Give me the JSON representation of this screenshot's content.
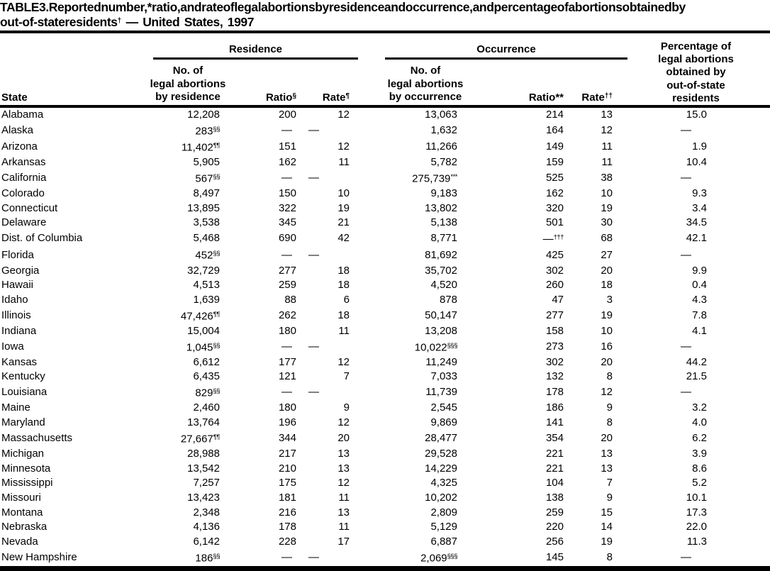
{
  "title": {
    "line1": "TABLE 3. Reported number,* ratio, and rate of legal abortions by residence and occurrence, and percentage of abortions obtained by",
    "line2a": "out-of-state residents",
    "line2_sup": "†",
    "line2b": " — United States, 1997"
  },
  "header": {
    "state_label": "State",
    "residence": {
      "group_label": "Residence",
      "no_lines": [
        "No. of",
        "legal abortions",
        "by residence"
      ],
      "ratio_label": "Ratio",
      "ratio_sup": "§",
      "rate_label": "Rate",
      "rate_sup": "¶"
    },
    "occurrence": {
      "group_label": "Occurrence",
      "no_lines": [
        "No. of",
        "legal abortions",
        "by occurrence"
      ],
      "ratio_label": "Ratio**",
      "rate_label": "Rate",
      "rate_sup": "††"
    },
    "percentage_lines": [
      "Percentage of",
      "legal abortions",
      "obtained by",
      "out-of-state",
      "residents"
    ]
  },
  "table": {
    "column_keys": [
      "state",
      "res_no",
      "res_ratio",
      "res_rate",
      "occ_no",
      "occ_ratio",
      "occ_rate",
      "pct"
    ],
    "rows": [
      {
        "state": "Alabama",
        "res_no": "12,208",
        "res_ratio": "200",
        "res_rate": "12",
        "occ_no": "13,063",
        "occ_ratio": "214",
        "occ_rate": "13",
        "pct": "15.0"
      },
      {
        "state": "Alaska",
        "res_no": "283",
        "res_no_sup": "§§",
        "res_ratio": "—",
        "res_rate": "—",
        "occ_no": "1,632",
        "occ_ratio": "164",
        "occ_rate": "12",
        "pct": "—"
      },
      {
        "state": "Arizona",
        "res_no": "11,402",
        "res_no_sup": "¶¶",
        "res_ratio": "151",
        "res_rate": "12",
        "occ_no": "11,266",
        "occ_ratio": "149",
        "occ_rate": "11",
        "pct": "1.9"
      },
      {
        "state": "Arkansas",
        "res_no": "5,905",
        "res_ratio": "162",
        "res_rate": "11",
        "occ_no": "5,782",
        "occ_ratio": "159",
        "occ_rate": "11",
        "pct": "10.4"
      },
      {
        "state": "California",
        "res_no": "567",
        "res_no_sup": "§§",
        "res_ratio": "—",
        "res_rate": "—",
        "occ_no": "275,739",
        "occ_no_sup": "***",
        "occ_ratio": "525",
        "occ_rate": "38",
        "pct": "—"
      },
      {
        "state": "Colorado",
        "res_no": "8,497",
        "res_ratio": "150",
        "res_rate": "10",
        "occ_no": "9,183",
        "occ_ratio": "162",
        "occ_rate": "10",
        "pct": "9.3"
      },
      {
        "state": "Connecticut",
        "res_no": "13,895",
        "res_ratio": "322",
        "res_rate": "19",
        "occ_no": "13,802",
        "occ_ratio": "320",
        "occ_rate": "19",
        "pct": "3.4"
      },
      {
        "state": "Delaware",
        "res_no": "3,538",
        "res_ratio": "345",
        "res_rate": "21",
        "occ_no": "5,138",
        "occ_ratio": "501",
        "occ_rate": "30",
        "pct": "34.5"
      },
      {
        "state": "Dist. of Columbia",
        "res_no": "5,468",
        "res_ratio": "690",
        "res_rate": "42",
        "occ_no": "8,771",
        "occ_ratio": "—",
        "occ_ratio_sup": "†††",
        "occ_rate": "68",
        "pct": "42.1"
      },
      {
        "state": "Florida",
        "res_no": "452",
        "res_no_sup": "§§",
        "res_ratio": "—",
        "res_rate": "—",
        "occ_no": "81,692",
        "occ_ratio": "425",
        "occ_rate": "27",
        "pct": "—"
      },
      {
        "state": "Georgia",
        "res_no": "32,729",
        "res_ratio": "277",
        "res_rate": "18",
        "occ_no": "35,702",
        "occ_ratio": "302",
        "occ_rate": "20",
        "pct": "9.9"
      },
      {
        "state": "Hawaii",
        "res_no": "4,513",
        "res_ratio": "259",
        "res_rate": "18",
        "occ_no": "4,520",
        "occ_ratio": "260",
        "occ_rate": "18",
        "pct": "0.4"
      },
      {
        "state": "Idaho",
        "res_no": "1,639",
        "res_ratio": "88",
        "res_rate": "6",
        "occ_no": "878",
        "occ_ratio": "47",
        "occ_rate": "3",
        "pct": "4.3"
      },
      {
        "state": "Illinois",
        "res_no": "47,426",
        "res_no_sup": "¶¶",
        "res_ratio": "262",
        "res_rate": "18",
        "occ_no": "50,147",
        "occ_ratio": "277",
        "occ_rate": "19",
        "pct": "7.8"
      },
      {
        "state": "Indiana",
        "res_no": "15,004",
        "res_ratio": "180",
        "res_rate": "11",
        "occ_no": "13,208",
        "occ_ratio": "158",
        "occ_rate": "10",
        "pct": "4.1"
      },
      {
        "state": "Iowa",
        "res_no": "1,045",
        "res_no_sup": "§§",
        "res_ratio": "—",
        "res_rate": "—",
        "occ_no": "10,022",
        "occ_no_sup": "§§§",
        "occ_ratio": "273",
        "occ_rate": "16",
        "pct": "—"
      },
      {
        "state": "Kansas",
        "res_no": "6,612",
        "res_ratio": "177",
        "res_rate": "12",
        "occ_no": "11,249",
        "occ_ratio": "302",
        "occ_rate": "20",
        "pct": "44.2"
      },
      {
        "state": "Kentucky",
        "res_no": "6,435",
        "res_ratio": "121",
        "res_rate": "7",
        "occ_no": "7,033",
        "occ_ratio": "132",
        "occ_rate": "8",
        "pct": "21.5"
      },
      {
        "state": "Louisiana",
        "res_no": "829",
        "res_no_sup": "§§",
        "res_ratio": "—",
        "res_rate": "—",
        "occ_no": "11,739",
        "occ_ratio": "178",
        "occ_rate": "12",
        "pct": "—"
      },
      {
        "state": "Maine",
        "res_no": "2,460",
        "res_ratio": "180",
        "res_rate": "9",
        "occ_no": "2,545",
        "occ_ratio": "186",
        "occ_rate": "9",
        "pct": "3.2"
      },
      {
        "state": "Maryland",
        "res_no": "13,764",
        "res_ratio": "196",
        "res_rate": "12",
        "occ_no": "9,869",
        "occ_ratio": "141",
        "occ_rate": "8",
        "pct": "4.0"
      },
      {
        "state": "Massachusetts",
        "res_no": "27,667",
        "res_no_sup": "¶¶",
        "res_ratio": "344",
        "res_rate": "20",
        "occ_no": "28,477",
        "occ_ratio": "354",
        "occ_rate": "20",
        "pct": "6.2"
      },
      {
        "state": "Michigan",
        "res_no": "28,988",
        "res_ratio": "217",
        "res_rate": "13",
        "occ_no": "29,528",
        "occ_ratio": "221",
        "occ_rate": "13",
        "pct": "3.9"
      },
      {
        "state": "Minnesota",
        "res_no": "13,542",
        "res_ratio": "210",
        "res_rate": "13",
        "occ_no": "14,229",
        "occ_ratio": "221",
        "occ_rate": "13",
        "pct": "8.6"
      },
      {
        "state": "Mississippi",
        "res_no": "7,257",
        "res_ratio": "175",
        "res_rate": "12",
        "occ_no": "4,325",
        "occ_ratio": "104",
        "occ_rate": "7",
        "pct": "5.2"
      },
      {
        "state": "Missouri",
        "res_no": "13,423",
        "res_ratio": "181",
        "res_rate": "11",
        "occ_no": "10,202",
        "occ_ratio": "138",
        "occ_rate": "9",
        "pct": "10.1"
      },
      {
        "state": "Montana",
        "res_no": "2,348",
        "res_ratio": "216",
        "res_rate": "13",
        "occ_no": "2,809",
        "occ_ratio": "259",
        "occ_rate": "15",
        "pct": "17.3"
      },
      {
        "state": "Nebraska",
        "res_no": "4,136",
        "res_ratio": "178",
        "res_rate": "11",
        "occ_no": "5,129",
        "occ_ratio": "220",
        "occ_rate": "14",
        "pct": "22.0"
      },
      {
        "state": "Nevada",
        "res_no": "6,142",
        "res_ratio": "228",
        "res_rate": "17",
        "occ_no": "6,887",
        "occ_ratio": "256",
        "occ_rate": "19",
        "pct": "11.3"
      },
      {
        "state": "New Hampshire",
        "res_no": "186",
        "res_no_sup": "§§",
        "res_ratio": "—",
        "res_rate": "—",
        "occ_no": "2,069",
        "occ_no_sup": "§§§",
        "occ_ratio": "145",
        "occ_rate": "8",
        "pct": "—"
      }
    ]
  },
  "colors": {
    "text": "#000000",
    "background": "#ffffff"
  }
}
